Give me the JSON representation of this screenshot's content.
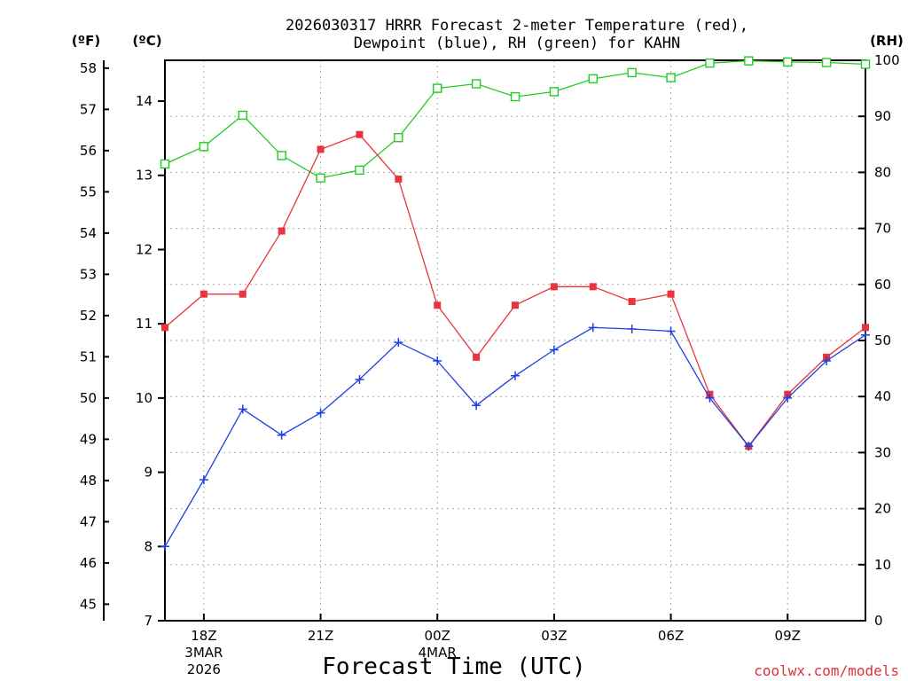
{
  "chart_data": {
    "type": "line",
    "title_line1": "2026030317 HRRR Forecast 2-meter Temperature (red),",
    "title_line2": "Dewpoint (blue), RH (green) for KAHN",
    "xlabel": "Forecast Time (UTC)",
    "credit": "coolwx.com/models",
    "units": {
      "fahrenheit": "(ºF)",
      "celsius": "(ºC)",
      "rh": "(RH)"
    },
    "x_hours": [
      17,
      18,
      19,
      20,
      21,
      22,
      23,
      24,
      25,
      26,
      27,
      28,
      29,
      30,
      31,
      32,
      33,
      34,
      35
    ],
    "x_ticks": [
      {
        "hour": 18,
        "label": "18Z",
        "sub1": "3MAR",
        "sub2": "2026"
      },
      {
        "hour": 21,
        "label": "21Z",
        "sub1": "",
        "sub2": ""
      },
      {
        "hour": 24,
        "label": "00Z",
        "sub1": "4MAR",
        "sub2": ""
      },
      {
        "hour": 27,
        "label": "03Z",
        "sub1": "",
        "sub2": ""
      },
      {
        "hour": 30,
        "label": "06Z",
        "sub1": "",
        "sub2": ""
      },
      {
        "hour": 33,
        "label": "09Z",
        "sub1": "",
        "sub2": ""
      }
    ],
    "celsius_ticks": [
      "7",
      "8",
      "9",
      "10",
      "11",
      "12",
      "13",
      "14"
    ],
    "fahrenheit_ticks": [
      "45",
      "46",
      "47",
      "48",
      "49",
      "50",
      "51",
      "52",
      "53",
      "54",
      "55",
      "56",
      "57",
      "58"
    ],
    "rh_ticks": [
      "0",
      "10",
      "20",
      "30",
      "40",
      "50",
      "60",
      "70",
      "80",
      "90",
      "100"
    ],
    "ylim_celsius": [
      7,
      14.55
    ],
    "ylim_rh": [
      0,
      100
    ],
    "series": [
      {
        "name": "Temperature",
        "color": "#e8343c",
        "marker": "filled-square",
        "axis": "celsius",
        "values": [
          10.95,
          11.4,
          11.4,
          12.25,
          13.35,
          13.55,
          12.95,
          11.25,
          10.55,
          11.25,
          11.5,
          11.5,
          11.3,
          11.4,
          10.05,
          9.35,
          10.05,
          10.55,
          10.95
        ]
      },
      {
        "name": "Dewpoint",
        "color": "#2040e0",
        "marker": "plus",
        "axis": "celsius",
        "values": [
          8.0,
          8.9,
          9.85,
          9.5,
          9.8,
          10.25,
          10.75,
          10.5,
          9.9,
          10.3,
          10.65,
          10.95,
          10.93,
          10.9,
          10.0,
          9.35,
          10.0,
          10.5,
          10.85
        ]
      },
      {
        "name": "RH",
        "color": "#22cc22",
        "marker": "open-square",
        "axis": "rh",
        "values": [
          81.5,
          84.6,
          90.2,
          83.0,
          79.0,
          80.4,
          86.2,
          95.0,
          95.8,
          93.5,
          94.4,
          96.7,
          97.8,
          96.9,
          99.5,
          99.9,
          99.7,
          99.6,
          99.3
        ]
      }
    ]
  }
}
